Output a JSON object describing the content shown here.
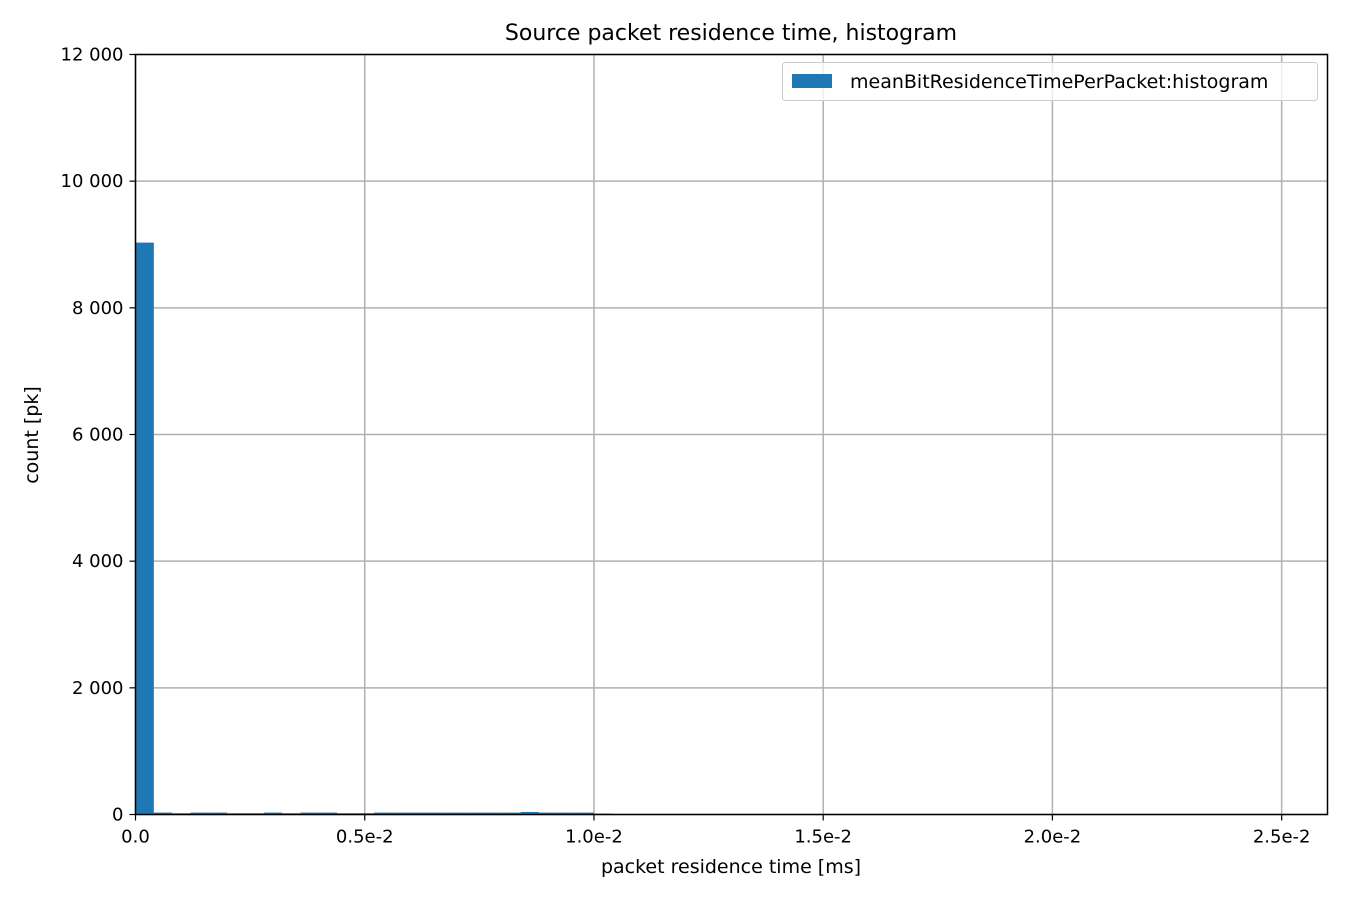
{
  "chart_data": {
    "type": "bar",
    "title": "Source packet residence time, histogram",
    "xlabel": "packet residence time [ms]",
    "ylabel": "count [pk]",
    "xlim": [
      0,
      0.026
    ],
    "ylim": [
      0,
      12000
    ],
    "grid": true,
    "legend_position": "top-right",
    "x_ticks": [
      {
        "value": 0.0,
        "label": "0.0"
      },
      {
        "value": 0.005,
        "label": "0.5e-2"
      },
      {
        "value": 0.01,
        "label": "1.0e-2"
      },
      {
        "value": 0.015,
        "label": "1.5e-2"
      },
      {
        "value": 0.02,
        "label": "2.0e-2"
      },
      {
        "value": 0.025,
        "label": "2.5e-2"
      }
    ],
    "y_ticks": [
      {
        "value": 0,
        "label": "0"
      },
      {
        "value": 2000,
        "label": "2 000"
      },
      {
        "value": 4000,
        "label": "4 000"
      },
      {
        "value": 6000,
        "label": "6 000"
      },
      {
        "value": 8000,
        "label": "8 000"
      },
      {
        "value": 10000,
        "label": "10 000"
      },
      {
        "value": 12000,
        "label": "12 000"
      }
    ],
    "series": [
      {
        "name": "meanBitResidenceTimePerPacket:histogram",
        "color": "#1f77b4",
        "bin_width": 0.0004,
        "bins": [
          {
            "x": 0.0,
            "value": 9030
          },
          {
            "x": 0.0004,
            "value": 30
          },
          {
            "x": 0.0008,
            "value": 20
          },
          {
            "x": 0.0012,
            "value": 30
          },
          {
            "x": 0.0016,
            "value": 30
          },
          {
            "x": 0.002,
            "value": 20
          },
          {
            "x": 0.0024,
            "value": 20
          },
          {
            "x": 0.0028,
            "value": 30
          },
          {
            "x": 0.0032,
            "value": 20
          },
          {
            "x": 0.0036,
            "value": 30
          },
          {
            "x": 0.004,
            "value": 30
          },
          {
            "x": 0.0044,
            "value": 20
          },
          {
            "x": 0.0048,
            "value": 20
          },
          {
            "x": 0.0052,
            "value": 30
          },
          {
            "x": 0.0056,
            "value": 30
          },
          {
            "x": 0.006,
            "value": 30
          },
          {
            "x": 0.0064,
            "value": 30
          },
          {
            "x": 0.0068,
            "value": 30
          },
          {
            "x": 0.0072,
            "value": 30
          },
          {
            "x": 0.0076,
            "value": 30
          },
          {
            "x": 0.008,
            "value": 30
          },
          {
            "x": 0.0084,
            "value": 40
          },
          {
            "x": 0.0088,
            "value": 30
          },
          {
            "x": 0.0092,
            "value": 30
          },
          {
            "x": 0.0096,
            "value": 30
          },
          {
            "x": 0.01,
            "value": 15
          }
        ]
      }
    ]
  }
}
